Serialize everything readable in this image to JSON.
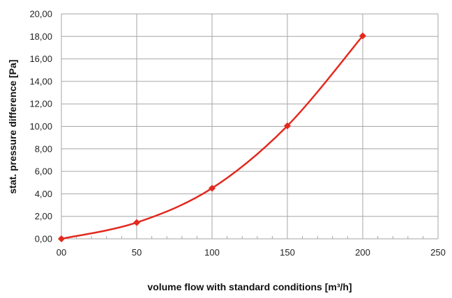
{
  "chart_data": {
    "type": "line",
    "title": "",
    "xlabel": "volume flow with standard conditions [m³/h]",
    "ylabel": "stat. pressure difference [Pa]",
    "xlim": [
      0,
      250
    ],
    "ylim": [
      0,
      20
    ],
    "x_ticks": [
      0,
      50,
      100,
      150,
      200,
      250
    ],
    "x_tick_labels": [
      "00",
      "50",
      "100",
      "150",
      "200",
      "250"
    ],
    "y_ticks": [
      0,
      2,
      4,
      6,
      8,
      10,
      12,
      14,
      16,
      18,
      20
    ],
    "y_tick_labels": [
      "0,00",
      "2,00",
      "4,00",
      "6,00",
      "8,00",
      "10,00",
      "12,00",
      "14,00",
      "16,00",
      "18,00",
      "20,00"
    ],
    "grid": true,
    "legend": false,
    "series": [
      {
        "color": "#e3281e",
        "marker": "diamond",
        "smooth": true,
        "x": [
          0,
          50,
          100,
          150,
          200
        ],
        "y": [
          0.0,
          1.45,
          4.5,
          10.05,
          18.05
        ]
      }
    ]
  }
}
